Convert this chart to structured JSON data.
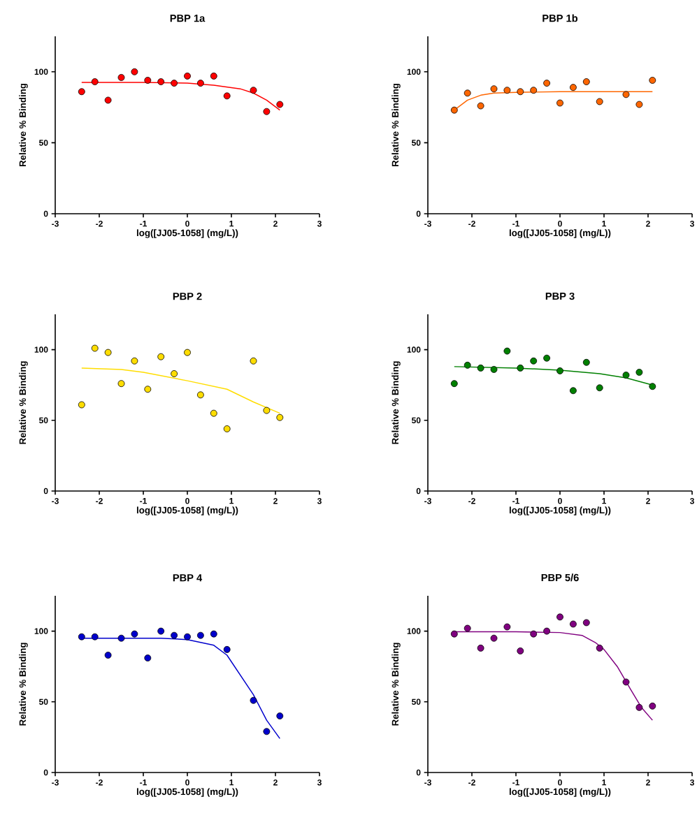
{
  "chart_data": [
    {
      "type": "scatter",
      "title": "PBP 1a",
      "xlabel": "log([JJ05-1058] (mg/L))",
      "ylabel": "Relative % Binding",
      "xlim": [
        -3,
        3
      ],
      "ylim": [
        0,
        125
      ],
      "xticks": [
        -3,
        -2,
        -1,
        0,
        1,
        2,
        3
      ],
      "yticks": [
        0,
        50,
        100
      ],
      "x": [
        -2.4,
        -2.1,
        -1.8,
        -1.5,
        -1.2,
        -0.9,
        -0.6,
        -0.3,
        0,
        0.3,
        0.6,
        0.9,
        1.5,
        1.8,
        2.1
      ],
      "series": [
        {
          "type": "scatter",
          "marker": "circle",
          "color": "#ff0000",
          "values": [
            86,
            93,
            80,
            96,
            100,
            94,
            93,
            92,
            97,
            92,
            97,
            83,
            87,
            72,
            77
          ]
        },
        {
          "type": "line",
          "marker": "none",
          "color": "#ff0000",
          "x": [
            -2.4,
            -1,
            0,
            0.6,
            1.2,
            1.5,
            1.8,
            2.1
          ],
          "values": [
            92.5,
            92.5,
            92,
            90.5,
            88,
            85,
            80,
            73
          ]
        }
      ]
    },
    {
      "type": "scatter",
      "title": "PBP 1b",
      "xlabel": "log([JJ05-1058] (mg/L))",
      "ylabel": "Relative % Binding",
      "xlim": [
        -3,
        3
      ],
      "ylim": [
        0,
        125
      ],
      "xticks": [
        -3,
        -2,
        -1,
        0,
        1,
        2,
        3
      ],
      "yticks": [
        0,
        50,
        100
      ],
      "x": [
        -2.4,
        -2.1,
        -1.8,
        -1.5,
        -1.2,
        -0.9,
        -0.6,
        -0.3,
        0,
        0.3,
        0.6,
        0.9,
        1.5,
        1.8,
        2.1
      ],
      "series": [
        {
          "type": "scatter",
          "marker": "circle",
          "color": "#ff6600",
          "values": [
            73,
            85,
            76,
            88,
            87,
            86,
            87,
            92,
            78,
            89,
            93,
            79,
            84,
            77,
            94
          ]
        },
        {
          "type": "line",
          "marker": "none",
          "color": "#ff6600",
          "x": [
            -2.4,
            -2.1,
            -1.8,
            -1.5,
            -1,
            0,
            1,
            2.1
          ],
          "values": [
            73,
            80,
            83.5,
            85,
            85.5,
            86,
            86,
            86
          ]
        }
      ]
    },
    {
      "type": "scatter",
      "title": "PBP 2",
      "xlabel": "log([JJ05-1058] (mg/L))",
      "ylabel": "Relative % Binding",
      "xlim": [
        -3,
        3
      ],
      "ylim": [
        0,
        125
      ],
      "xticks": [
        -3,
        -2,
        -1,
        0,
        1,
        2,
        3
      ],
      "yticks": [
        0,
        50,
        100
      ],
      "x": [
        -2.4,
        -2.1,
        -1.8,
        -1.5,
        -1.2,
        -0.9,
        -0.6,
        -0.3,
        0,
        0.3,
        0.6,
        0.9,
        1.5,
        1.8,
        2.1
      ],
      "series": [
        {
          "type": "scatter",
          "marker": "circle",
          "color": "#ffdd00",
          "values": [
            61,
            101,
            98,
            76,
            92,
            72,
            95,
            83,
            98,
            68,
            55,
            44,
            92,
            57,
            52
          ]
        },
        {
          "type": "line",
          "marker": "none",
          "color": "#ffdd00",
          "x": [
            -2.4,
            -1.5,
            -1,
            0,
            0.9,
            1.5,
            2.1
          ],
          "values": [
            87,
            86,
            84,
            78,
            72,
            63,
            55
          ]
        }
      ]
    },
    {
      "type": "scatter",
      "title": "PBP 3",
      "xlabel": "log([JJ05-1058] (mg/L))",
      "ylabel": "Relative % Binding",
      "xlim": [
        -3,
        3
      ],
      "ylim": [
        0,
        125
      ],
      "xticks": [
        -3,
        -2,
        -1,
        0,
        1,
        2,
        3
      ],
      "yticks": [
        0,
        50,
        100
      ],
      "x": [
        -2.4,
        -2.1,
        -1.8,
        -1.5,
        -1.2,
        -0.9,
        -0.6,
        -0.3,
        0,
        0.3,
        0.6,
        0.9,
        1.5,
        1.8,
        2.1
      ],
      "series": [
        {
          "type": "scatter",
          "marker": "circle",
          "color": "#008000",
          "values": [
            76,
            89,
            87,
            86,
            99,
            87,
            92,
            94,
            85,
            71,
            91,
            73,
            82,
            84,
            74
          ]
        },
        {
          "type": "line",
          "marker": "none",
          "color": "#008000",
          "x": [
            -2.4,
            -1,
            0,
            0.9,
            1.5,
            2.1
          ],
          "values": [
            88,
            87,
            85.5,
            83,
            80,
            75
          ]
        }
      ]
    },
    {
      "type": "scatter",
      "title": "PBP 4",
      "xlabel": "log([JJ05-1058] (mg/L))",
      "ylabel": "Relative % Binding",
      "xlim": [
        -3,
        3
      ],
      "ylim": [
        0,
        125
      ],
      "xticks": [
        -3,
        -2,
        -1,
        0,
        1,
        2,
        3
      ],
      "yticks": [
        0,
        50,
        100
      ],
      "x": [
        -2.4,
        -2.1,
        -1.8,
        -1.5,
        -1.2,
        -0.9,
        -0.6,
        -0.3,
        0,
        0.3,
        0.6,
        0.9,
        1.5,
        1.8,
        2.1
      ],
      "series": [
        {
          "type": "scatter",
          "marker": "circle",
          "color": "#0000cc",
          "values": [
            96,
            96,
            83,
            95,
            98,
            81,
            100,
            97,
            96,
            97,
            98,
            87,
            51,
            29,
            40
          ]
        },
        {
          "type": "line",
          "marker": "none",
          "color": "#0000cc",
          "x": [
            -2.4,
            -0.6,
            0,
            0.6,
            0.9,
            1.2,
            1.5,
            1.8,
            2.1
          ],
          "values": [
            95,
            95,
            94,
            90,
            83,
            69,
            55,
            37,
            24
          ]
        }
      ]
    },
    {
      "type": "scatter",
      "title": "PBP 5/6",
      "xlabel": "log([JJ05-1058] (mg/L))",
      "ylabel": "Relative % Binding",
      "xlim": [
        -3,
        3
      ],
      "ylim": [
        0,
        125
      ],
      "xticks": [
        -3,
        -2,
        -1,
        0,
        1,
        2,
        3
      ],
      "yticks": [
        0,
        50,
        100
      ],
      "x": [
        -2.4,
        -2.1,
        -1.8,
        -1.5,
        -1.2,
        -0.9,
        -0.6,
        -0.3,
        0,
        0.3,
        0.6,
        0.9,
        1.5,
        1.8,
        2.1
      ],
      "series": [
        {
          "type": "scatter",
          "marker": "circle",
          "color": "#800080",
          "values": [
            98,
            102,
            88,
            95,
            103,
            86,
            98,
            100,
            110,
            105,
            106,
            88,
            64,
            46,
            47
          ]
        },
        {
          "type": "line",
          "marker": "none",
          "color": "#800080",
          "x": [
            -2.4,
            -1,
            0,
            0.5,
            0.8,
            1.0,
            1.3,
            1.6,
            1.85,
            2.1
          ],
          "values": [
            99.5,
            99.5,
            99,
            97,
            92,
            87,
            75,
            59,
            46,
            37
          ]
        }
      ]
    }
  ]
}
